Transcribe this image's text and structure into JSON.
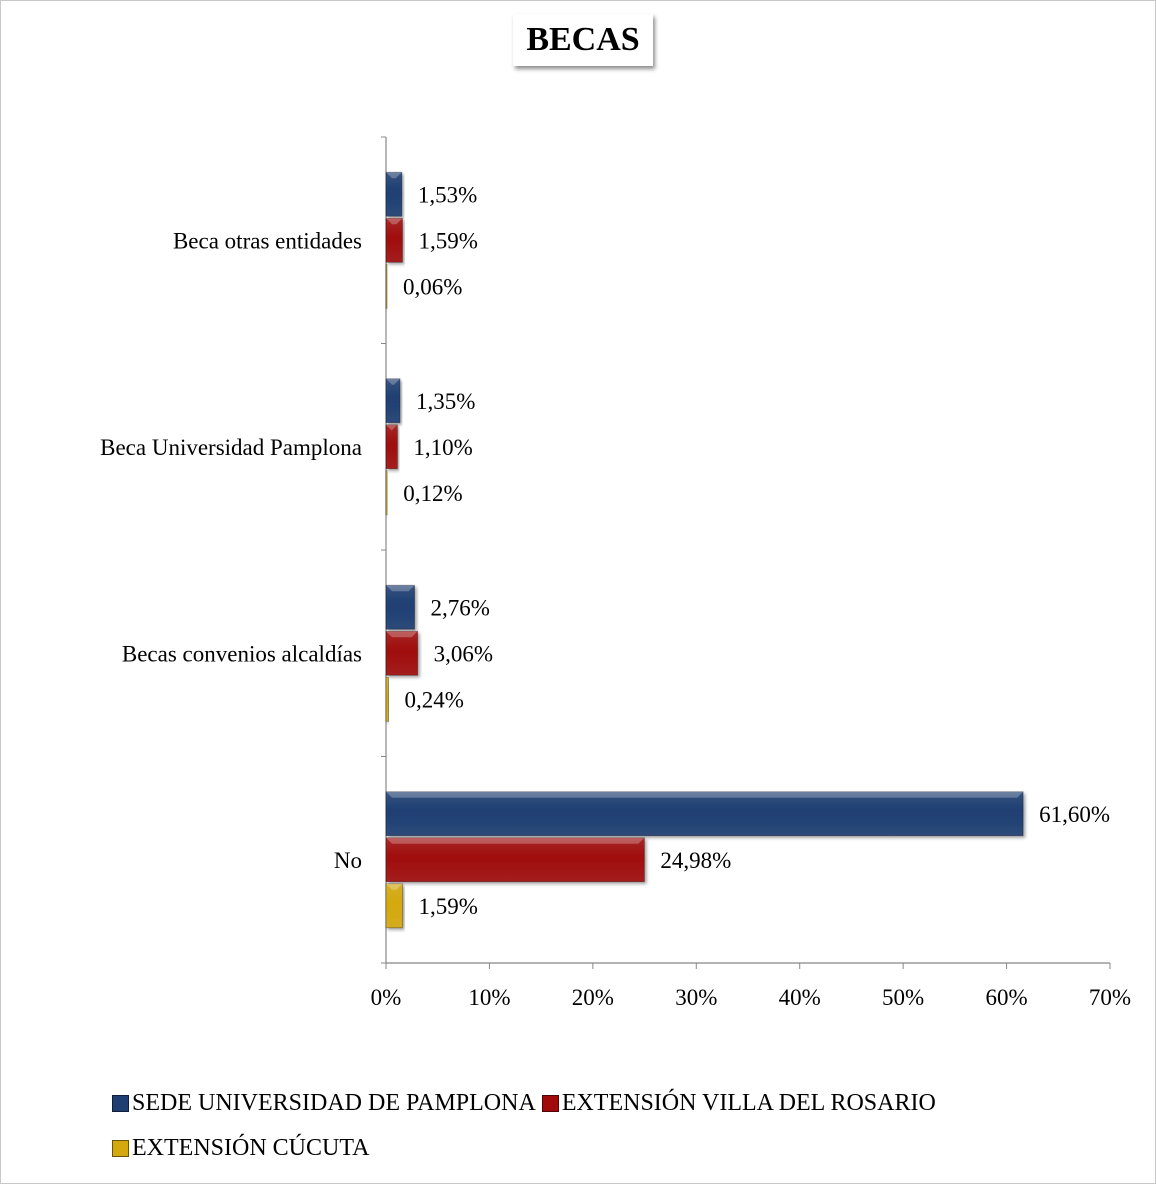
{
  "chart_data": {
    "type": "bar",
    "orientation": "horizontal",
    "title": "BECAS",
    "categories": [
      "Beca otras entidades",
      "Beca Universidad Pamplona",
      "Becas convenios alcaldías",
      "No"
    ],
    "series": [
      {
        "name": "SEDE UNIVERSIDAD DE PAMPLONA",
        "color": "#1f3f73",
        "values": [
          1.53,
          1.35,
          2.76,
          61.6
        ],
        "labels": [
          "1,53%",
          "1,35%",
          "2,76%",
          "61,60%"
        ]
      },
      {
        "name": "EXTENSIÓN VILLA DEL ROSARIO",
        "color": "#a00a0a",
        "values": [
          1.59,
          1.1,
          3.06,
          24.98
        ],
        "labels": [
          "1,59%",
          "1,10%",
          "3,06%",
          "24,98%"
        ]
      },
      {
        "name": "EXTENSIÓN CÚCUTA",
        "color": "#d4a90e",
        "values": [
          0.06,
          0.12,
          0.24,
          1.59
        ],
        "labels": [
          "0,06%",
          "0,12%",
          "0,24%",
          "1,59%"
        ]
      }
    ],
    "xlim": [
      0,
      70
    ],
    "xticks": [
      "0%",
      "10%",
      "20%",
      "30%",
      "40%",
      "50%",
      "60%",
      "70%"
    ],
    "grid": false,
    "legend_position": "bottom"
  }
}
